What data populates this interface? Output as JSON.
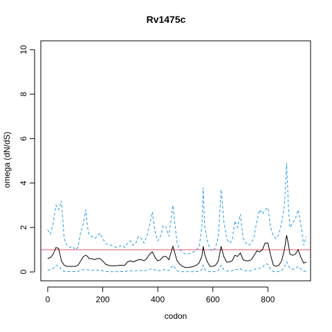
{
  "chart_data": {
    "type": "line",
    "title": "Rv1475c",
    "xlabel": "codon",
    "ylabel": "omega (dN/dS)",
    "xlim": [
      -25,
      955
    ],
    "ylim": [
      -0.4,
      10.4
    ],
    "x_ticks": [
      0,
      200,
      400,
      600,
      800
    ],
    "y_ticks": [
      0,
      2,
      4,
      6,
      8,
      10
    ],
    "reference_line": {
      "y": 1,
      "color": "#df536b"
    },
    "series": [
      {
        "style": "dashed",
        "color": "#2297e6",
        "x": [
          0,
          10,
          20,
          30,
          40,
          50,
          60,
          70,
          80,
          90,
          100,
          110,
          120,
          130,
          138,
          145,
          150,
          160,
          170,
          180,
          190,
          200,
          210,
          220,
          230,
          240,
          250,
          260,
          270,
          280,
          290,
          300,
          310,
          320,
          330,
          340,
          350,
          360,
          370,
          380,
          390,
          400,
          410,
          420,
          430,
          440,
          455,
          470,
          480,
          490,
          500,
          510,
          520,
          530,
          540,
          550,
          560,
          565,
          570,
          580,
          590,
          600,
          610,
          620,
          630,
          640,
          650,
          660,
          670,
          680,
          690,
          700,
          710,
          720,
          730,
          740,
          750,
          760,
          770,
          780,
          790,
          800,
          810,
          820,
          830,
          840,
          850,
          860,
          868,
          875,
          880,
          890,
          900,
          910,
          920,
          930,
          940
        ],
        "y": [
          1.9,
          1.7,
          2.2,
          3.0,
          2.8,
          3.2,
          1.5,
          1.2,
          1.1,
          1.15,
          1.0,
          1.1,
          1.8,
          2.2,
          2.8,
          2.0,
          1.7,
          1.6,
          1.5,
          1.6,
          1.75,
          1.5,
          1.3,
          1.2,
          1.2,
          1.15,
          1.1,
          1.15,
          1.2,
          1.1,
          1.3,
          1.4,
          1.2,
          1.3,
          1.6,
          1.5,
          1.3,
          1.6,
          2.1,
          2.7,
          1.8,
          1.4,
          1.6,
          2.1,
          2.0,
          1.6,
          3.0,
          1.3,
          1.0,
          0.9,
          0.8,
          0.8,
          0.85,
          0.9,
          1.0,
          1.1,
          2.0,
          3.8,
          2.1,
          1.4,
          1.0,
          0.95,
          1.1,
          1.6,
          3.7,
          2.3,
          1.5,
          1.3,
          1.4,
          2.3,
          2.0,
          2.6,
          1.5,
          1.3,
          1.2,
          1.3,
          1.6,
          2.3,
          2.8,
          2.6,
          2.8,
          2.9,
          2.0,
          1.6,
          1.5,
          1.7,
          2.2,
          3.0,
          4.9,
          2.8,
          2.0,
          2.2,
          2.4,
          2.8,
          2.1,
          1.2,
          1.6
        ]
      },
      {
        "style": "solid",
        "color": "#000000",
        "x": [
          0,
          10,
          20,
          30,
          40,
          50,
          60,
          70,
          80,
          90,
          100,
          110,
          120,
          130,
          138,
          145,
          150,
          160,
          170,
          180,
          190,
          200,
          210,
          220,
          230,
          240,
          250,
          260,
          270,
          280,
          290,
          300,
          310,
          320,
          330,
          340,
          350,
          360,
          370,
          380,
          390,
          400,
          410,
          420,
          430,
          440,
          455,
          470,
          480,
          490,
          500,
          510,
          520,
          530,
          540,
          550,
          560,
          565,
          570,
          580,
          590,
          600,
          610,
          620,
          630,
          640,
          650,
          660,
          670,
          680,
          690,
          700,
          710,
          720,
          730,
          740,
          750,
          760,
          770,
          780,
          790,
          800,
          810,
          820,
          830,
          840,
          850,
          860,
          868,
          875,
          880,
          890,
          900,
          910,
          920,
          930,
          940
        ],
        "y": [
          0.6,
          0.65,
          0.8,
          1.1,
          1.05,
          0.5,
          0.3,
          0.25,
          0.25,
          0.25,
          0.25,
          0.3,
          0.5,
          0.7,
          0.75,
          0.7,
          0.6,
          0.6,
          0.55,
          0.6,
          0.6,
          0.5,
          0.35,
          0.3,
          0.28,
          0.28,
          0.28,
          0.3,
          0.3,
          0.3,
          0.45,
          0.5,
          0.45,
          0.5,
          0.55,
          0.55,
          0.5,
          0.6,
          0.8,
          0.9,
          0.65,
          0.5,
          0.55,
          0.7,
          0.7,
          0.55,
          1.15,
          0.5,
          0.35,
          0.25,
          0.2,
          0.2,
          0.22,
          0.25,
          0.3,
          0.4,
          0.7,
          1.15,
          0.8,
          0.45,
          0.25,
          0.25,
          0.3,
          0.5,
          1.15,
          0.7,
          0.45,
          0.45,
          0.5,
          0.75,
          0.7,
          0.85,
          0.55,
          0.5,
          0.5,
          0.55,
          0.75,
          0.95,
          0.9,
          1.0,
          1.3,
          1.3,
          0.75,
          0.3,
          0.25,
          0.3,
          0.5,
          1.0,
          1.65,
          1.2,
          0.8,
          0.75,
          0.8,
          1.0,
          0.65,
          0.4,
          0.45
        ]
      },
      {
        "style": "dashed",
        "color": "#2297e6",
        "x": [
          0,
          10,
          20,
          30,
          40,
          50,
          60,
          70,
          80,
          90,
          100,
          110,
          120,
          130,
          138,
          145,
          150,
          160,
          170,
          180,
          190,
          200,
          210,
          220,
          230,
          240,
          250,
          260,
          270,
          280,
          290,
          300,
          310,
          320,
          330,
          340,
          350,
          360,
          370,
          380,
          390,
          400,
          410,
          420,
          430,
          440,
          455,
          470,
          480,
          490,
          500,
          510,
          520,
          530,
          540,
          550,
          560,
          565,
          570,
          580,
          590,
          600,
          610,
          620,
          630,
          640,
          650,
          660,
          670,
          680,
          690,
          700,
          710,
          720,
          730,
          740,
          750,
          760,
          770,
          780,
          790,
          800,
          810,
          820,
          830,
          840,
          850,
          860,
          868,
          875,
          880,
          890,
          900,
          910,
          920,
          930,
          940
        ],
        "y": [
          0.08,
          0.1,
          0.15,
          0.3,
          0.28,
          0.1,
          0.03,
          0.02,
          0.02,
          0.02,
          0.02,
          0.03,
          0.06,
          0.1,
          0.12,
          0.1,
          0.08,
          0.08,
          0.07,
          0.07,
          0.08,
          0.05,
          0.02,
          0.02,
          0.01,
          0.01,
          0.01,
          0.02,
          0.02,
          0.02,
          0.04,
          0.05,
          0.04,
          0.05,
          0.06,
          0.06,
          0.05,
          0.07,
          0.12,
          0.15,
          0.08,
          0.05,
          0.06,
          0.1,
          0.1,
          0.06,
          0.3,
          0.05,
          0.02,
          0.01,
          0.01,
          0.01,
          0.01,
          0.01,
          0.02,
          0.03,
          0.1,
          0.3,
          0.12,
          0.04,
          0.01,
          0.01,
          0.02,
          0.06,
          0.3,
          0.1,
          0.04,
          0.04,
          0.05,
          0.12,
          0.1,
          0.14,
          0.06,
          0.05,
          0.05,
          0.06,
          0.1,
          0.18,
          0.16,
          0.2,
          0.35,
          0.35,
          0.12,
          0.02,
          0.01,
          0.02,
          0.06,
          0.22,
          0.45,
          0.3,
          0.15,
          0.12,
          0.15,
          0.25,
          0.12,
          0.03,
          0.04
        ]
      }
    ],
    "grid": false,
    "legend": "none"
  }
}
